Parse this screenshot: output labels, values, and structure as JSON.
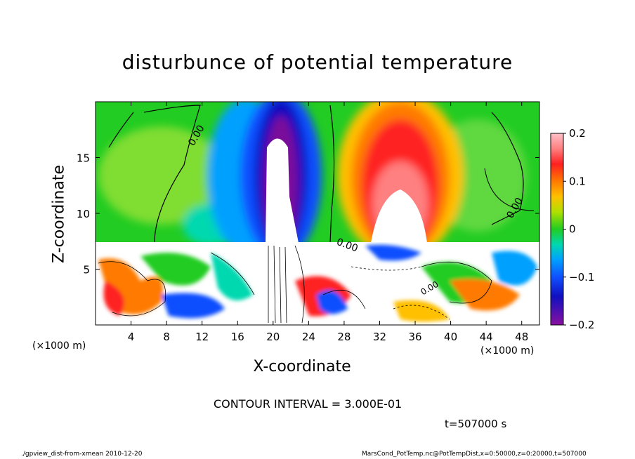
{
  "chart_data": {
    "type": "heatmap",
    "title": "disturbunce of potential temperature",
    "xlabel": "X-coordinate",
    "ylabel": "Z-coordinate",
    "x_unit": "(×1000 m)",
    "x_ticks": [
      4,
      8,
      12,
      16,
      20,
      24,
      28,
      32,
      36,
      40,
      44,
      48
    ],
    "y_ticks": [
      5,
      10,
      15
    ],
    "xlim": [
      0,
      50
    ],
    "ylim": [
      0,
      20
    ],
    "colorbar": {
      "ticks": [
        "0.2",
        "0.1",
        "0",
        "−0.1",
        "−0.2"
      ],
      "tick_values": [
        0.2,
        0.1,
        0,
        -0.1,
        -0.2
      ],
      "range": [
        -0.2,
        0.2
      ]
    },
    "contour_labels": [
      "0.00",
      "0.00",
      "0.00",
      "0.00"
    ],
    "contour_interval": "CONTOUR INTERVAL = 3.000E-01",
    "time": "t=507000  s"
  },
  "footer": {
    "left": "./gpview_dist-from-xmean  2010-12-20",
    "right": "MarsCond_PotTemp.nc@PotTempDist,x=0:50000,z=0:20000,t=507000"
  },
  "colors": {
    "field_background": "#22cc22",
    "strong_negative": "#7a109a",
    "negative": "#1010d0",
    "positive": "#ff2020",
    "strong_positive": "#ffb0b0"
  }
}
